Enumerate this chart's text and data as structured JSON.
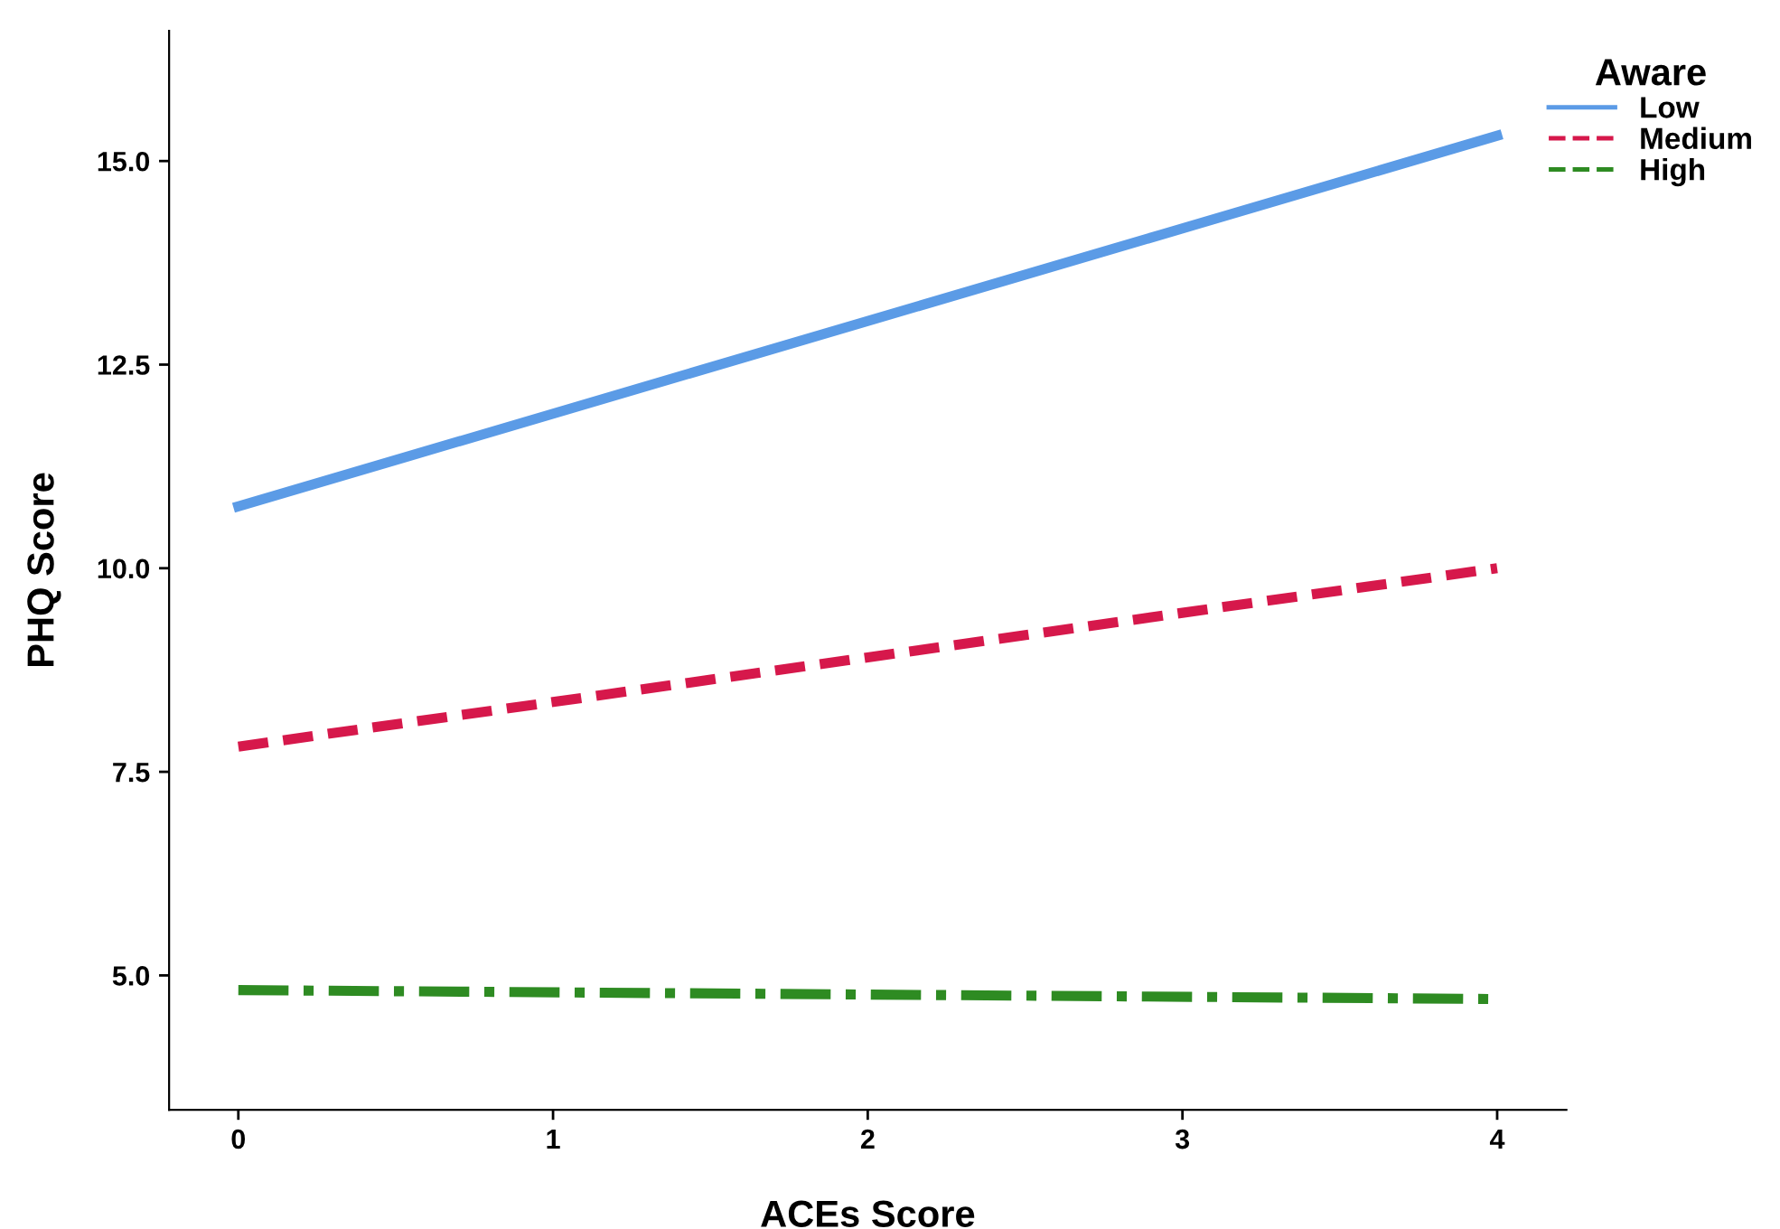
{
  "chart_data": {
    "type": "line",
    "xlabel": "ACEs Score",
    "ylabel": "PHQ Score",
    "legend_title": "Aware",
    "x": [
      0,
      4
    ],
    "series": [
      {
        "name": "Low",
        "color": "#5b9be6",
        "line_style": "solid",
        "values": [
          10.76,
          15.31
        ]
      },
      {
        "name": "Medium",
        "color": "#d6184b",
        "line_style": "dashed",
        "values": [
          7.81,
          10.0
        ]
      },
      {
        "name": "High",
        "color": "#2e8b22",
        "line_style": "dashdot",
        "values": [
          4.82,
          4.71
        ]
      }
    ],
    "xlim": [
      -0.22,
      4.22
    ],
    "ylim": [
      3.35,
      16.6
    ],
    "xticks": [
      0,
      1,
      2,
      3,
      4
    ],
    "yticks": [
      {
        "value": 5,
        "label": "5.0"
      },
      {
        "value": 7.5,
        "label": "7.5"
      },
      {
        "value": 10,
        "label": "10.0"
      },
      {
        "value": 12.5,
        "label": "12.5"
      },
      {
        "value": 15,
        "label": "15.0"
      }
    ],
    "grid": false,
    "legend": "top right",
    "marker": "none"
  }
}
